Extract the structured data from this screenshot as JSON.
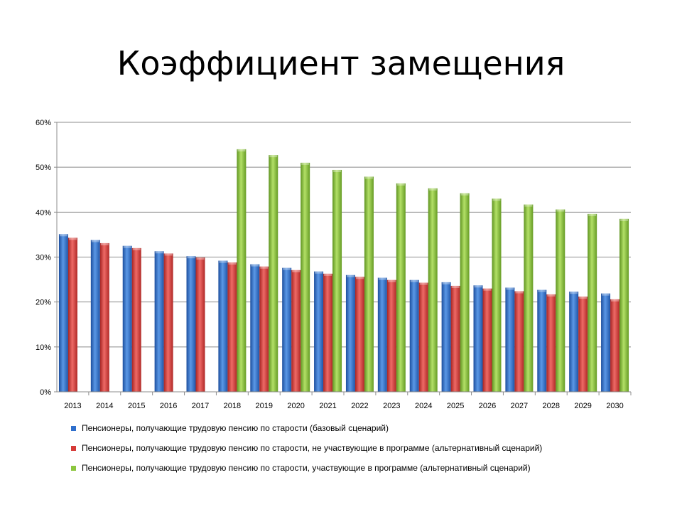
{
  "slide": {
    "title": "Коэффициент замещения"
  },
  "chart_data": {
    "type": "bar",
    "categories": [
      "2013",
      "2014",
      "2015",
      "2016",
      "2017",
      "2018",
      "2019",
      "2020",
      "2021",
      "2022",
      "2023",
      "2024",
      "2025",
      "2026",
      "2027",
      "2028",
      "2029",
      "2030"
    ],
    "ylim": [
      0,
      60
    ],
    "yticks": [
      "0%",
      "10%",
      "20%",
      "30%",
      "40%",
      "50%",
      "60%"
    ],
    "grid": true,
    "legend_position": "bottom",
    "series": [
      {
        "name": "Пенсионеры, получающие трудовую пенсию по старости (базовый сценарий)",
        "color": "#2f6fcc",
        "values": [
          35.1,
          33.8,
          32.5,
          31.3,
          30.2,
          29.2,
          28.4,
          27.6,
          26.8,
          26.0,
          25.4,
          24.9,
          24.4,
          23.7,
          23.2,
          22.7,
          22.3,
          21.9
        ]
      },
      {
        "name": "Пенсионеры, получающие трудовую пенсию по старости, не участвующие в программе (альтернативный сценарий)",
        "color": "#d63b38",
        "values": [
          34.3,
          33.1,
          32.0,
          30.8,
          29.9,
          28.8,
          27.9,
          27.1,
          26.3,
          25.6,
          24.9,
          24.3,
          23.6,
          23.0,
          22.4,
          21.7,
          21.2,
          20.6
        ]
      },
      {
        "name": "Пенсионеры, получающие трудовую пенсию по старости, участвующие в программе (альтернативный сценарий)",
        "color": "#8cc63f",
        "values": [
          null,
          null,
          null,
          null,
          null,
          54.0,
          52.7,
          51.0,
          49.4,
          47.9,
          46.4,
          45.3,
          44.2,
          43.0,
          41.7,
          40.6,
          39.6,
          38.5
        ]
      }
    ]
  }
}
